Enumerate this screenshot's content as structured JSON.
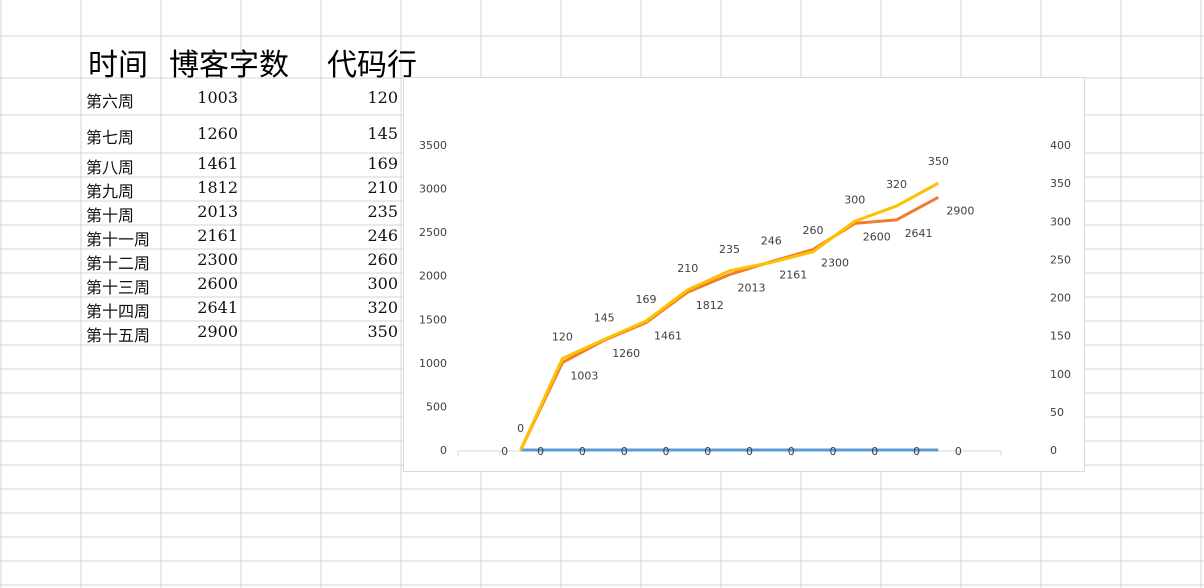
{
  "sheet": {
    "headers": {
      "time": "时间",
      "blog_words": "博客字数",
      "code_lines": "代码行"
    },
    "rows": [
      {
        "week": "第六周",
        "blog": "1003",
        "code": "120"
      },
      {
        "week": "第七周",
        "blog": "1260",
        "code": "145"
      },
      {
        "week": "第八周",
        "blog": "1461",
        "code": "169"
      },
      {
        "week": "第九周",
        "blog": "1812",
        "code": "210"
      },
      {
        "week": "第十周",
        "blog": "2013",
        "code": "235"
      },
      {
        "week": "第十一周",
        "blog": "2161",
        "code": "246"
      },
      {
        "week": "第十二周",
        "blog": "2300",
        "code": "260"
      },
      {
        "week": "第十三周",
        "blog": "2600",
        "code": "300"
      },
      {
        "week": "第十四周",
        "blog": "2641",
        "code": "320"
      },
      {
        "week": "第十五周",
        "blog": "2900",
        "code": "350"
      }
    ]
  },
  "chart_data": {
    "type": "line",
    "category_count": 13,
    "point_start_index": 1,
    "primary_axis": {
      "ylim": [
        0,
        3500
      ],
      "ticks": [
        "0",
        "500",
        "1000",
        "1500",
        "2000",
        "2500",
        "3000",
        "3500"
      ]
    },
    "secondary_axis": {
      "ylim": [
        0,
        400
      ],
      "ticks": [
        "0",
        "50",
        "100",
        "150",
        "200",
        "250",
        "300",
        "350",
        "400"
      ]
    },
    "series": [
      {
        "axis": "primary",
        "color": "#5b9bd5",
        "values": [
          0,
          0,
          0,
          0,
          0,
          0,
          0,
          0,
          0,
          0,
          0
        ]
      },
      {
        "axis": "primary",
        "color": "#ed7d31",
        "values": [
          0,
          1003,
          1260,
          1461,
          1812,
          2013,
          2161,
          2300,
          2600,
          2641,
          2900
        ]
      },
      {
        "axis": "secondary",
        "color": "#ffc000",
        "values": [
          0,
          120,
          145,
          169,
          210,
          235,
          246,
          260,
          300,
          320,
          350
        ]
      }
    ],
    "legend": "none",
    "grid": false
  }
}
